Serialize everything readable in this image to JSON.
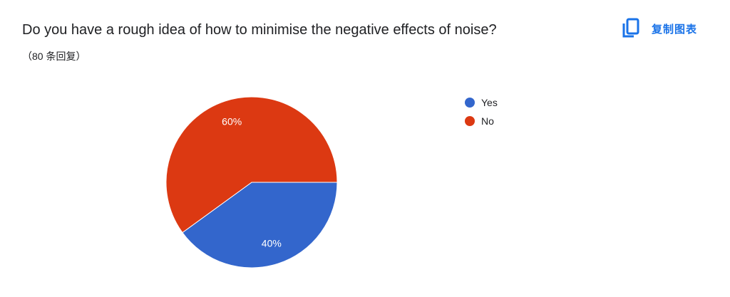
{
  "question": {
    "title": "Do you have a rough idea of how to minimise the negative effects of noise?",
    "response_count": "（80 条回复）"
  },
  "toolbar": {
    "copy_chart_label": "复制图表",
    "copy_icon": "copy-icon",
    "accent_color": "#1a73e8"
  },
  "chart_data": {
    "type": "pie",
    "categories": [
      "Yes",
      "No"
    ],
    "values": [
      40,
      60
    ],
    "labels": [
      "40%",
      "60%"
    ],
    "colors": [
      "#3366cc",
      "#dc3912"
    ],
    "legend_position": "right"
  }
}
